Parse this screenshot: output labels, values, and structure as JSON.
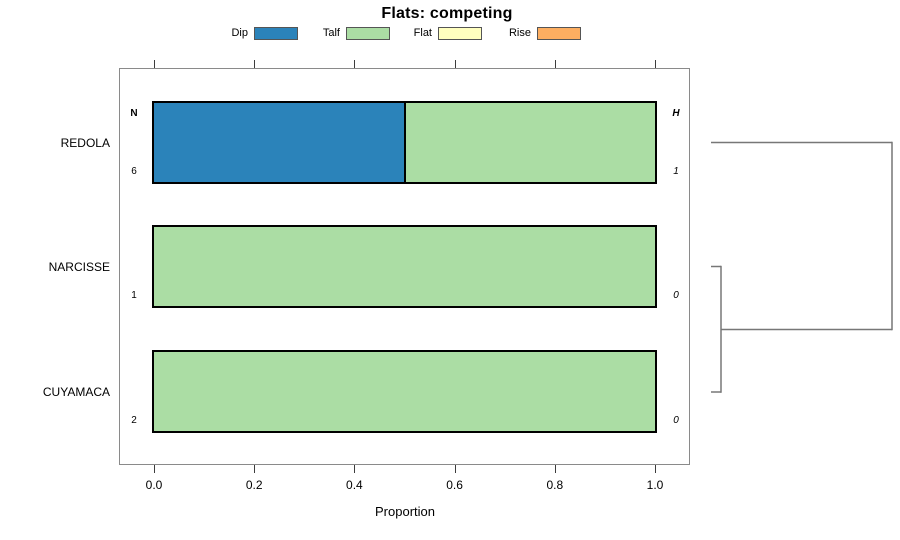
{
  "title": "Flats: competing",
  "legend": {
    "items": [
      {
        "label": "Dip",
        "color": "#2b83ba"
      },
      {
        "label": "Talf",
        "color": "#abdda4"
      },
      {
        "label": "Flat",
        "color": "#ffffbf"
      },
      {
        "label": "Rise",
        "color": "#fdae61"
      }
    ]
  },
  "axis": {
    "xlabel": "Proportion",
    "tick_labels": [
      "0.0",
      "0.2",
      "0.4",
      "0.6",
      "0.8",
      "1.0"
    ],
    "tick_values": [
      0,
      0.2,
      0.4,
      0.6,
      0.8,
      1.0
    ]
  },
  "chart_data": {
    "type": "bar",
    "subtype": "horizontal-stacked-proportion",
    "title": "Flats: competing",
    "xlabel": "Proportion",
    "xlim": [
      0,
      1
    ],
    "grid": false,
    "legend_position": "top",
    "categories": [
      "REDOLA",
      "NARCISSE",
      "CUYAMACA"
    ],
    "series": [
      {
        "name": "Dip",
        "color": "#2b83ba",
        "values": [
          0.5,
          0,
          0
        ]
      },
      {
        "name": "Talf",
        "color": "#abdda4",
        "values": [
          0.5,
          1,
          1
        ]
      },
      {
        "name": "Flat",
        "color": "#ffffbf",
        "values": [
          0,
          0,
          0
        ]
      },
      {
        "name": "Rise",
        "color": "#fdae61",
        "values": [
          0,
          0,
          0
        ]
      }
    ],
    "row_annotations": {
      "left_header": "N",
      "right_header": "H",
      "left_values": [
        "6",
        "1",
        "2"
      ],
      "right_values": [
        "1",
        "0",
        "0"
      ]
    },
    "dendrogram": {
      "present": true,
      "merges": [
        [
          "NARCISSE",
          "CUYAMACA"
        ],
        [
          "REDOLA",
          "(NARCISSE,CUYAMACA)"
        ]
      ]
    }
  },
  "colors": {
    "plot_border": "#8a8a8a",
    "bar_border": "#000000",
    "dendrogram_line": "#777777"
  }
}
